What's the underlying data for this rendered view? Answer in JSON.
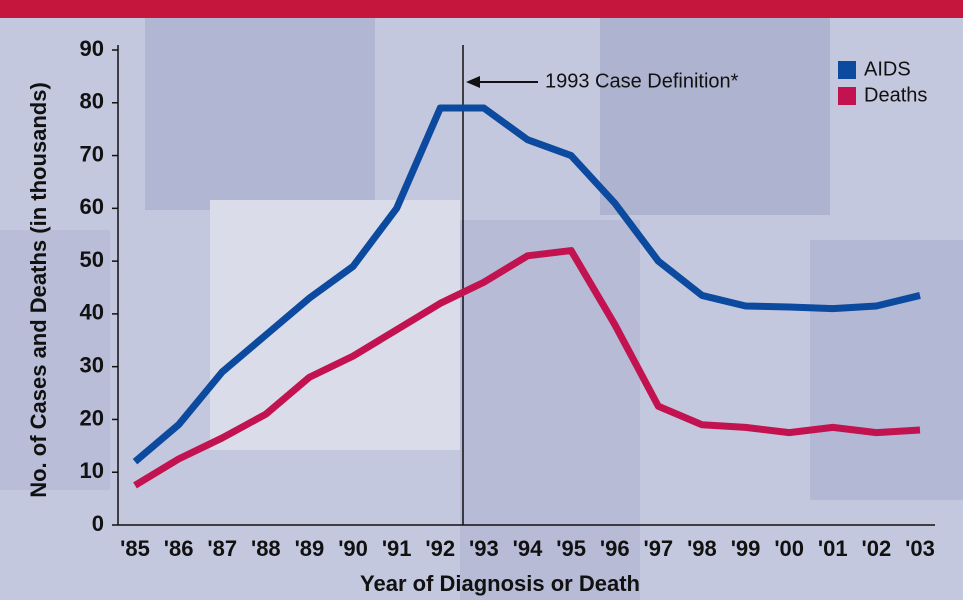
{
  "chart_data": {
    "type": "line",
    "title": null,
    "annotation": "1993 Case Definition*",
    "x_label": "Year of Diagnosis or Death",
    "y_label": "No. of Cases and Deaths (in thousands)",
    "categories": [
      "'85",
      "'86",
      "'87",
      "'88",
      "'89",
      "'90",
      "'91",
      "'92",
      "'93",
      "'94",
      "'95",
      "'96",
      "'97",
      "'98",
      "'99",
      "'00",
      "'01",
      "'02",
      "'03"
    ],
    "series": [
      {
        "name": "AIDS",
        "color": "#0b4a9e",
        "values": [
          12,
          19,
          29,
          36,
          43,
          49,
          60,
          79,
          79,
          73,
          70,
          61,
          50,
          43.5,
          41.5,
          41.3,
          41,
          41.5,
          43.5
        ]
      },
      {
        "name": "Deaths",
        "color": "#c21350",
        "values": [
          7.5,
          12.5,
          16.5,
          21,
          28,
          32,
          37,
          42,
          46,
          51,
          52,
          38,
          22.5,
          19,
          18.5,
          17.5,
          18.5,
          17.5,
          18
        ]
      }
    ],
    "ylim": [
      0,
      90
    ],
    "yticks": [
      0,
      10,
      20,
      30,
      40,
      50,
      60,
      70,
      80,
      90
    ],
    "legend": "top-right"
  }
}
